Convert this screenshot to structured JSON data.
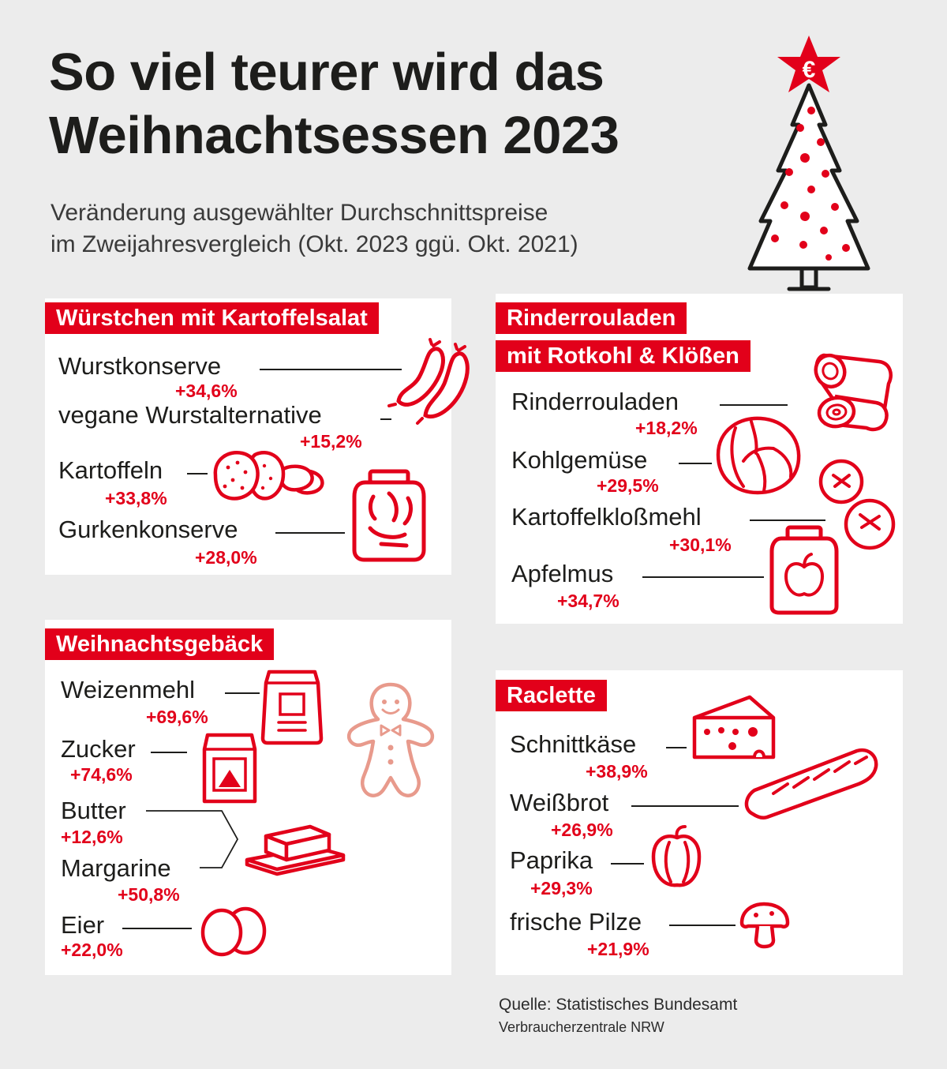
{
  "header": {
    "title_line1": "So viel teurer wird das",
    "title_line2": "Weihnachtsessen 2023",
    "subtitle_line1": "Veränderung ausgewählter Durchschnittspreise",
    "subtitle_line2": "im Zweijahresvergleich (Okt. 2023 ggü. Okt. 2021)"
  },
  "colors": {
    "accent": "#e2001a",
    "pastry": "#e89a8c",
    "background": "#ececec",
    "panel": "#ffffff"
  },
  "sections": {
    "wuerstchen": {
      "title": "Würstchen mit Kartoffelsalat",
      "items": [
        {
          "name": "Wurstkonserve",
          "change": "+34,6%",
          "icon": "sausages-icon"
        },
        {
          "name": "vegane Wurstalternative",
          "change": "+15,2%",
          "icon": "sausages-icon"
        },
        {
          "name": "Kartoffeln",
          "change": "+33,8%",
          "icon": "potatoes-icon"
        },
        {
          "name": "Gurkenkonserve",
          "change": "+28,0%",
          "icon": "pickle-jar-icon"
        }
      ]
    },
    "rinderrouladen": {
      "title_line1": "Rinderrouladen",
      "title_line2": "mit Rotkohl & Klößen",
      "items": [
        {
          "name": "Rinderrouladen",
          "change": "+18,2%",
          "icon": "roulade-icon"
        },
        {
          "name": "Kohlgemüse",
          "change": "+29,5%",
          "icon": "cabbage-icon"
        },
        {
          "name": "Kartoffelkloßmehl",
          "change": "+30,1%",
          "icon": "dumplings-icon"
        },
        {
          "name": "Apfelmus",
          "change": "+34,7%",
          "icon": "apple-jar-icon"
        }
      ]
    },
    "gebaeck": {
      "title": "Weihnachtsgebäck",
      "items": [
        {
          "name": "Weizenmehl",
          "change": "+69,6%",
          "icon": "flour-bag-icon"
        },
        {
          "name": "Zucker",
          "change": "+74,6%",
          "icon": "sugar-bag-icon"
        },
        {
          "name": "Butter",
          "change": "+12,6%",
          "icon": "butter-dish-icon"
        },
        {
          "name": "Margarine",
          "change": "+50,8%",
          "icon": "butter-dish-icon"
        },
        {
          "name": "Eier",
          "change": "+22,0%",
          "icon": "eggs-icon"
        }
      ]
    },
    "raclette": {
      "title": "Raclette",
      "items": [
        {
          "name": "Schnittkäse",
          "change": "+38,9%",
          "icon": "cheese-icon"
        },
        {
          "name": "Weißbrot",
          "change": "+26,9%",
          "icon": "baguette-icon"
        },
        {
          "name": "Paprika",
          "change": "+29,3%",
          "icon": "pepper-icon"
        },
        {
          "name": "frische Pilze",
          "change": "+21,9%",
          "icon": "mushroom-icon"
        }
      ]
    }
  },
  "source": {
    "line1": "Quelle: Statistisches Bundesamt",
    "line2": "Verbraucherzentrale NRW"
  }
}
